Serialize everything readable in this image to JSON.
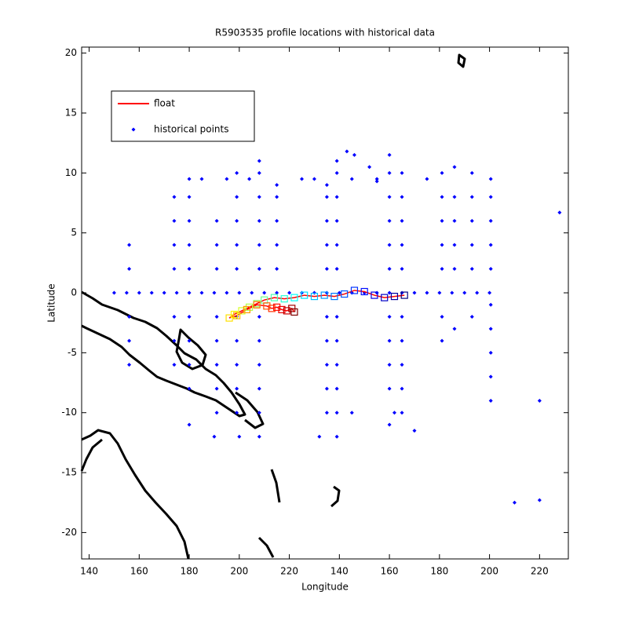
{
  "chart_data": {
    "type": "scatter",
    "title": "R5903535 profile locations with historical data",
    "x_label": "Longitude",
    "y_label": "Latitude",
    "xlim": [
      137,
      331.5
    ],
    "ylim": [
      -22.2,
      20.5
    ],
    "xticks": [
      140,
      160,
      180,
      200,
      220,
      {
        "value": 240,
        "label": "140"
      },
      {
        "value": 260,
        "label": "160"
      },
      {
        "value": 280,
        "label": "180"
      },
      {
        "value": 300,
        "label": "200"
      },
      {
        "value": 320,
        "label": "220"
      }
    ],
    "yticks": [
      -20,
      -15,
      -10,
      -5,
      0,
      5,
      10,
      15,
      20
    ],
    "legend": "upper left",
    "series": [
      {
        "name": "float",
        "color": "#ff0000",
        "x": [
          266,
          262,
          258,
          254,
          250,
          246,
          242,
          238,
          234,
          230,
          226,
          222,
          218,
          214,
          210,
          207,
          204,
          201,
          198,
          196,
          199,
          203,
          207,
          211,
          213,
          215,
          217,
          219,
          221,
          222
        ],
        "values": [
          -0.2,
          -0.3,
          -0.4,
          -0.2,
          0.1,
          0.2,
          -0.1,
          -0.3,
          -0.2,
          -0.3,
          -0.2,
          -0.4,
          -0.5,
          -0.4,
          -0.6,
          -0.9,
          -1.2,
          -1.5,
          -1.8,
          -2.1,
          -1.9,
          -1.4,
          -1.0,
          -1.1,
          -1.3,
          -1.2,
          -1.4,
          -1.5,
          -1.3,
          -1.6
        ]
      },
      {
        "name": "historical points",
        "color": "#0000ff",
        "x": [
          156,
          156,
          156,
          156,
          156,
          174,
          174,
          174,
          174,
          174,
          174,
          174,
          180,
          180,
          180,
          180,
          180,
          180,
          180,
          180,
          180,
          180,
          191,
          191,
          191,
          191,
          191,
          191,
          191,
          191,
          199,
          199,
          199,
          199,
          199,
          199,
          199,
          199,
          199,
          199,
          208,
          208,
          208,
          208,
          208,
          208,
          208,
          208,
          208,
          208,
          208,
          208,
          215,
          215,
          215,
          215,
          215,
          235,
          235,
          235,
          235,
          235,
          235,
          235,
          235,
          235,
          235,
          239,
          239,
          239,
          239,
          239,
          239,
          239,
          239,
          239,
          239,
          239,
          239,
          260,
          260,
          260,
          260,
          260,
          260,
          260,
          260,
          260,
          260,
          260,
          265,
          265,
          265,
          265,
          265,
          265,
          265,
          265,
          265,
          265,
          281,
          281,
          281,
          281,
          281,
          281,
          281,
          286,
          286,
          286,
          286,
          286,
          286,
          293,
          293,
          293,
          293,
          293,
          293,
          300.5,
          300.5,
          300.5,
          300.5,
          300.5,
          300.5,
          300.5,
          300.5,
          300.5,
          300.5,
          150,
          155,
          160,
          165,
          170,
          175,
          180,
          185,
          190,
          195,
          200,
          205,
          210,
          215,
          220,
          225,
          230,
          235,
          240,
          245,
          250,
          255,
          260,
          265,
          270,
          275,
          280,
          285,
          290,
          295,
          300,
          190,
          200,
          245,
          262,
          270,
          320,
          328,
          310,
          320,
          232,
          243,
          246,
          252,
          255,
          185,
          195,
          204,
          225,
          230,
          245,
          255,
          275
        ],
        "values": [
          -6,
          -4,
          -2,
          2,
          4,
          -6,
          -4,
          -2,
          2,
          4,
          6,
          8,
          -11,
          -8,
          -6,
          -4,
          -2,
          2,
          4,
          6,
          8,
          9.5,
          -10,
          -8,
          -6,
          -4,
          -2,
          2,
          4,
          6,
          -10,
          -8,
          -6,
          -4,
          -2,
          2,
          4,
          6,
          8,
          10,
          -12,
          -10,
          -8,
          -6,
          -4,
          -2,
          2,
          4,
          6,
          8,
          10,
          11,
          2,
          4,
          6,
          8,
          9,
          -10,
          -8,
          -6,
          -4,
          -2,
          2,
          4,
          6,
          8,
          9,
          -12,
          -10,
          -8,
          -6,
          -4,
          -2,
          2,
          4,
          6,
          8,
          10,
          11,
          -11,
          -8,
          -6,
          -4,
          -2,
          2,
          4,
          6,
          8,
          10,
          11.5,
          -10,
          -8,
          -6,
          -4,
          -2,
          2,
          4,
          6,
          8,
          10,
          -4,
          -2,
          2,
          4,
          6,
          8,
          10,
          -3,
          2,
          4,
          6,
          8,
          10.5,
          -2,
          2,
          4,
          6,
          8,
          10,
          -9,
          -7,
          -5,
          -3,
          -1,
          2,
          4,
          6,
          8,
          9.5,
          0,
          0,
          0,
          0,
          0,
          0,
          0,
          0,
          0,
          0,
          0,
          0,
          0,
          0,
          0,
          0,
          0,
          0,
          0,
          0,
          0,
          0,
          0,
          0,
          0,
          0,
          0,
          0,
          0,
          0,
          0,
          -12,
          -12,
          -10,
          -10,
          -11.5,
          -9,
          6.7,
          -17.5,
          -17.3,
          -12,
          11.8,
          11.5,
          10.5,
          9.3,
          9.5,
          9.5,
          9.5,
          9.5,
          9.5,
          9.5,
          9.5,
          9.5
        ]
      }
    ]
  }
}
